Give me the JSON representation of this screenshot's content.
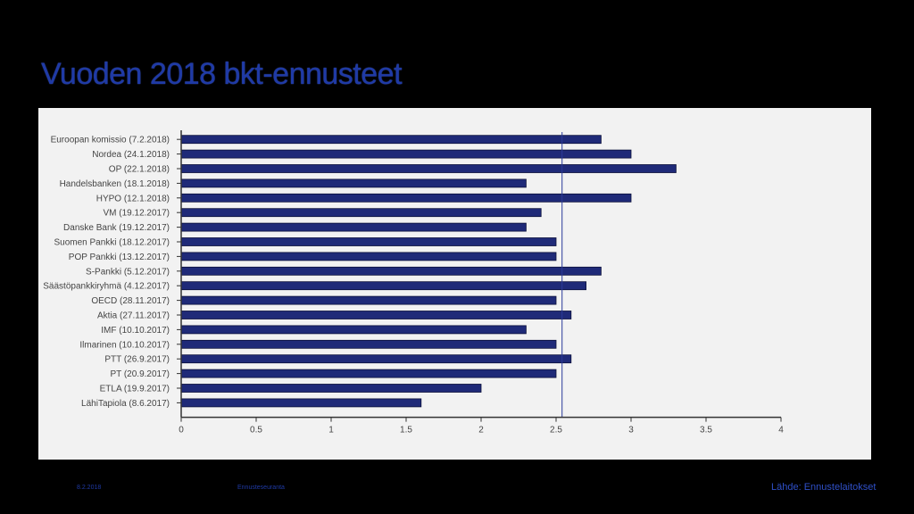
{
  "slide": {
    "title": "Vuoden 2018 bkt-ennusteet",
    "footer_date": "8.2.2018",
    "footer_center": "Ennusteseuranta",
    "source": "Lähde: Ennustelaitokset"
  },
  "colors": {
    "bar": "#1f2a78",
    "bar_stroke": "#0a0f3a",
    "reference_line": "#2b3a9a",
    "axis": "#333333",
    "label": "#444444"
  },
  "chart_data": {
    "type": "bar",
    "orientation": "horizontal",
    "categories": [
      "Euroopan komissio (7.2.2018)",
      "Nordea (24.1.2018)",
      "OP (22.1.2018)",
      "Handelsbanken (18.1.2018)",
      "HYPO (12.1.2018)",
      "VM (19.12.2017)",
      "Danske Bank (19.12.2017)",
      "Suomen Pankki (18.12.2017)",
      "POP Pankki (13.12.2017)",
      "S-Pankki (5.12.2017)",
      "Säästöpankkiryhmä (4.12.2017)",
      "OECD (28.11.2017)",
      "Aktia (27.11.2017)",
      "IMF (10.10.2017)",
      "Ilmarinen (10.10.2017)",
      "PTT (26.9.2017)",
      "PT (20.9.2017)",
      "ETLA (19.9.2017)",
      "LähiTapiola (8.6.2017)"
    ],
    "values": [
      2.8,
      3.0,
      3.3,
      2.3,
      3.0,
      2.4,
      2.3,
      2.5,
      2.5,
      2.8,
      2.7,
      2.5,
      2.6,
      2.3,
      2.5,
      2.6,
      2.5,
      2.0,
      1.6
    ],
    "reference_value": 2.54,
    "xlim": [
      0,
      4
    ],
    "xticks": [
      "0",
      "0.5",
      "1",
      "1.5",
      "2",
      "2.5",
      "3",
      "3.5",
      "4"
    ],
    "grid": false,
    "legend": "none"
  }
}
